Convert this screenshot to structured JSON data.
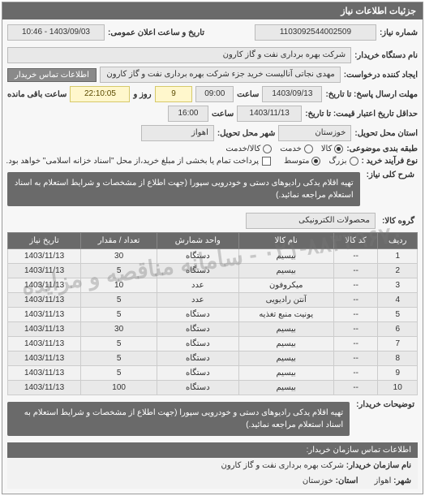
{
  "panel": {
    "title": "جزئیات اطلاعات نیاز"
  },
  "header": {
    "req_no_label": "شماره نیاز:",
    "req_no": "1103092544002509",
    "ann_label": "تاریخ و ساعت اعلان عمومی:",
    "ann_value": "1403/09/03 - 10:46",
    "buyer_label": "نام دستگاه خریدار:",
    "buyer_value": "شرکت بهره برداری نفت و گاز کارون",
    "requester_label": "ایجاد کننده درخواست:",
    "requester_value": "مهدی نجاتی آنالیست خرید جزء شرکت بهره برداری نفت و گاز کارون",
    "contact_btn": "اطلاعات تماس خریدار",
    "deadline_label": "مهلت ارسال پاسخ: تا تاریخ:",
    "deadline_date": "1403/09/13",
    "time_label": "ساعت",
    "deadline_time": "09:00",
    "days_remain": "9",
    "days_remain_label": "روز و",
    "time_remain": "22:10:05",
    "time_remain_label": "ساعت باقی مانده",
    "validity_label": "حداقل تاریخ اعتبار قیمت: تا تاریخ:",
    "validity_date": "1403/11/13",
    "validity_time": "16:00",
    "delivery_state_label": "استان محل تحویل:",
    "delivery_state": "خوزستان",
    "delivery_city_label": "شهر محل تحویل:",
    "delivery_city": "اهواز",
    "packaging_label": "طبقه بندی موضوعی:",
    "pkg_opt1": "کالا",
    "pkg_opt2": "خدمت",
    "pkg_opt3": "کالا/خدمت",
    "purchase_type_label": "نوع فرآیند خرید :",
    "pt_opt1": "بزرگ",
    "pt_opt2": "متوسط",
    "pay_note": "پرداخت تمام یا بخشی از مبلغ خرید،از محل \"اسناد خزانه اسلامی\" خواهد بود."
  },
  "summary": {
    "label": "شرح کلی نیاز:",
    "text": "تهیه اقلام یدکی رادیوهای دستی و خودرویی سپورا (جهت اطلاع از مشخصات و شرایط استعلام به اسناد استعلام مراجعه نمائید.)"
  },
  "goods": {
    "label": "گروه کالا:",
    "value": "محصولات الکترونیکی"
  },
  "table": {
    "headers": {
      "row": "ردیف",
      "code": "کد کالا",
      "name": "نام کالا",
      "unit": "واحد شمارش",
      "qty": "تعداد / مقدار",
      "need_date": "تاریخ نیاز"
    },
    "rows": [
      {
        "n": "1",
        "code": "--",
        "name": "بیسیم",
        "unit": "دستگاه",
        "qty": "30",
        "date": "1403/11/13"
      },
      {
        "n": "2",
        "code": "--",
        "name": "بیسیم",
        "unit": "دستگاه",
        "qty": "5",
        "date": "1403/11/13"
      },
      {
        "n": "3",
        "code": "--",
        "name": "میکروفون",
        "unit": "عدد",
        "qty": "10",
        "date": "1403/11/13"
      },
      {
        "n": "4",
        "code": "--",
        "name": "آنتن رادیویی",
        "unit": "عدد",
        "qty": "5",
        "date": "1403/11/13"
      },
      {
        "n": "5",
        "code": "--",
        "name": "یونیت منبع تغذیه",
        "unit": "دستگاه",
        "qty": "5",
        "date": "1403/11/13"
      },
      {
        "n": "6",
        "code": "--",
        "name": "بیسیم",
        "unit": "دستگاه",
        "qty": "30",
        "date": "1403/11/13"
      },
      {
        "n": "7",
        "code": "--",
        "name": "بیسیم",
        "unit": "دستگاه",
        "qty": "5",
        "date": "1403/11/13"
      },
      {
        "n": "8",
        "code": "--",
        "name": "بیسیم",
        "unit": "دستگاه",
        "qty": "5",
        "date": "1403/11/13"
      },
      {
        "n": "9",
        "code": "--",
        "name": "بیسیم",
        "unit": "دستگاه",
        "qty": "5",
        "date": "1403/11/13"
      },
      {
        "n": "10",
        "code": "--",
        "name": "بیسیم",
        "unit": "دستگاه",
        "qty": "100",
        "date": "1403/11/13"
      }
    ]
  },
  "footer": {
    "label": "توضیحات خریدار:",
    "text": "تهیه اقلام یدکی رادیوهای دستی و خودرویی سپورا (جهت اطلاع از مشخصات و شرایط استعلام به اسناد استعلام مراجعه نمائید.)"
  },
  "org": {
    "title": "اطلاعات تماس سازمان خریدار:",
    "name_label": "نام سازمان خریدار:",
    "name_value": "شرکت بهره برداری نفت و گاز کارون",
    "city_label": "شهر:",
    "city_value": "اهواز",
    "state_label": "استان:",
    "state_value": "خوزستان"
  },
  "watermark": "۰۲۱-۸۸۳۴۹۶۷۰ - سامانه مناقصه و مزایده"
}
